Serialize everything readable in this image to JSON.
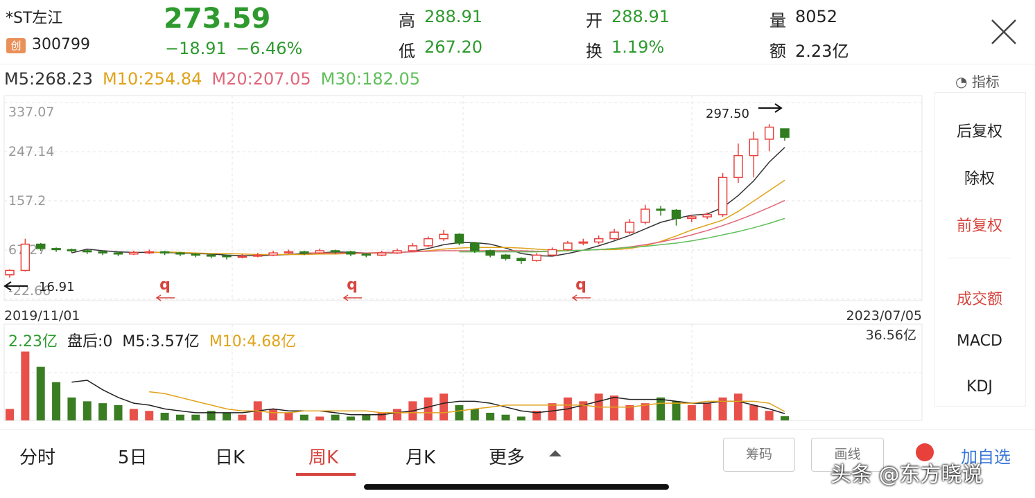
{
  "header": {
    "name": "*ST左江",
    "badge": "创",
    "code": "300799",
    "price": "273.59",
    "change": "−18.91",
    "change_pct": "−6.46%",
    "stats": [
      {
        "label": "高",
        "value": "288.91"
      },
      {
        "label": "开",
        "value": "288.91"
      },
      {
        "label": "量",
        "value": "8052"
      },
      {
        "label": "低",
        "value": "267.20"
      },
      {
        "label": "换",
        "value": "1.19%"
      },
      {
        "label": "额",
        "value": "2.23亿"
      }
    ]
  },
  "indicator_button": "指标",
  "side_menu": [
    "后复权",
    "除权",
    "前复权",
    "成交额",
    "MACD",
    "KDJ"
  ],
  "chart_data": [
    {
      "type": "candlestick",
      "up_color": "#e8413c",
      "down_color": "#2f7d1f",
      "ylim": [
        -22.66,
        337.07
      ],
      "yticks": [
        337.07,
        247.14,
        157.2,
        67.27,
        -22.66
      ],
      "x_labels": [
        "2019/11/01",
        "2023/07/05"
      ],
      "max_label": "297.50",
      "min_label": "16.91",
      "ex_rights_markers": [
        "q",
        "q",
        "q"
      ],
      "open": [
        22,
        30,
        78,
        70,
        68,
        66,
        64,
        62,
        60,
        63,
        64,
        62,
        60,
        58,
        57,
        55,
        56,
        58,
        62,
        64,
        62,
        66,
        64,
        60,
        58,
        62,
        66,
        75,
        88,
        96,
        80,
        66,
        58,
        52,
        48,
        58,
        68,
        80,
        82,
        88,
        100,
        118,
        142,
        140,
        125,
        128,
        132,
        200,
        240,
        270,
        288.91
      ],
      "high": [
        32,
        88,
        80,
        72,
        70,
        68,
        66,
        64,
        66,
        68,
        66,
        64,
        62,
        60,
        58,
        60,
        62,
        66,
        68,
        66,
        70,
        68,
        66,
        62,
        66,
        70,
        80,
        92,
        104,
        98,
        82,
        68,
        60,
        54,
        62,
        72,
        84,
        88,
        94,
        106,
        124,
        150,
        148,
        142,
        132,
        136,
        208,
        262,
        284,
        297.5,
        288.91
      ],
      "low": [
        16.91,
        28,
        66,
        64,
        62,
        60,
        58,
        56,
        58,
        60,
        58,
        56,
        54,
        52,
        50,
        52,
        54,
        56,
        60,
        58,
        60,
        60,
        56,
        54,
        56,
        60,
        64,
        72,
        84,
        76,
        62,
        54,
        48,
        42,
        46,
        56,
        66,
        76,
        78,
        86,
        96,
        114,
        130,
        112,
        118,
        124,
        128,
        190,
        200,
        248,
        267.2
      ],
      "close": [
        30,
        78,
        70,
        68,
        66,
        64,
        62,
        60,
        63,
        64,
        62,
        60,
        58,
        57,
        55,
        56,
        58,
        62,
        64,
        62,
        66,
        64,
        60,
        58,
        62,
        66,
        75,
        88,
        96,
        80,
        66,
        58,
        52,
        48,
        58,
        68,
        80,
        82,
        88,
        100,
        118,
        142,
        140,
        125,
        128,
        132,
        200,
        240,
        270,
        292,
        273.59
      ],
      "series": [
        {
          "label": "M5:268.23",
          "color": "#333333",
          "values": [
            null,
            null,
            null,
            null,
            62,
            69,
            66,
            64,
            63,
            63,
            63,
            62,
            61,
            60,
            58,
            57,
            57,
            58,
            59,
            61,
            62,
            64,
            63,
            62,
            62,
            62,
            65,
            70,
            77,
            81,
            81,
            78,
            71,
            61,
            57,
            56,
            61,
            67,
            75,
            84,
            94,
            106,
            118,
            125,
            131,
            133,
            145,
            167,
            194,
            228,
            255
          ]
        },
        {
          "label": "M10:254.84",
          "color": "#e0a31a",
          "values": [
            null,
            null,
            null,
            null,
            null,
            null,
            null,
            null,
            null,
            62,
            64,
            63,
            62,
            61,
            61,
            60,
            59,
            59,
            59,
            59,
            60,
            60,
            61,
            61,
            62,
            63,
            64,
            66,
            69,
            71,
            72,
            72,
            72,
            71,
            69,
            67,
            66,
            67,
            68,
            68,
            70,
            75,
            83,
            93,
            104,
            113,
            122,
            138,
            157,
            176,
            195
          ]
        },
        {
          "label": "M20:207.05",
          "color": "#e0677a",
          "values": [
            null,
            null,
            null,
            null,
            null,
            null,
            null,
            null,
            null,
            null,
            null,
            null,
            null,
            null,
            null,
            null,
            null,
            null,
            null,
            62,
            62,
            62,
            62,
            62,
            63,
            63,
            64,
            65,
            66,
            66,
            66,
            66,
            66,
            66,
            65,
            65,
            66,
            67,
            68,
            70,
            73,
            77,
            82,
            88,
            95,
            103,
            112,
            122,
            133,
            145,
            158
          ]
        },
        {
          "label": "M30:182.05",
          "color": "#5fbf5a",
          "values": [
            null,
            null,
            null,
            null,
            null,
            null,
            null,
            null,
            null,
            null,
            null,
            null,
            null,
            null,
            null,
            null,
            null,
            null,
            null,
            null,
            null,
            null,
            null,
            null,
            null,
            null,
            null,
            null,
            null,
            64,
            64,
            64,
            64,
            64,
            64,
            65,
            66,
            67,
            68,
            70,
            72,
            74,
            77,
            80,
            84,
            89,
            95,
            101,
            108,
            116,
            125
          ]
        }
      ]
    },
    {
      "type": "bar",
      "ylim": [
        0,
        36.56
      ],
      "yticks": [
        {
          "value": 36.56,
          "label": "36.56亿"
        }
      ],
      "legend_texts": [
        "2.23亿",
        "盘后:0"
      ],
      "values": [
        6,
        36,
        28,
        20,
        12,
        10,
        9,
        8,
        6,
        5,
        4,
        3,
        3,
        5,
        4,
        3,
        10,
        6,
        4,
        3,
        2,
        3,
        2,
        3,
        4,
        6,
        10,
        12,
        14,
        8,
        6,
        4,
        3,
        2,
        5,
        9,
        12,
        10,
        14,
        13,
        8,
        9,
        12,
        10,
        8,
        9,
        12,
        14,
        8,
        5,
        2.23
      ],
      "series": [
        {
          "label": "M5:3.57亿",
          "color": "#222222",
          "values": [
            null,
            null,
            null,
            null,
            20,
            21,
            16,
            12,
            9,
            8,
            6,
            5,
            4,
            4,
            4,
            4,
            5,
            6,
            5,
            5,
            5,
            4,
            3,
            3,
            3,
            4,
            5,
            7,
            9,
            10,
            10,
            9,
            7,
            5,
            4,
            5,
            6,
            8,
            10,
            12,
            11,
            11,
            11,
            10,
            9,
            9,
            10,
            10,
            8,
            6,
            3.57
          ]
        },
        {
          "label": "M10:4.68亿",
          "color": "#e0a31a",
          "values": [
            null,
            null,
            null,
            null,
            null,
            null,
            null,
            null,
            null,
            15,
            14,
            12,
            10,
            8,
            6,
            5,
            5,
            4,
            4,
            5,
            5,
            5,
            5,
            5,
            4,
            4,
            4,
            4,
            4,
            5,
            6,
            7,
            8,
            8,
            8,
            8,
            8,
            8,
            7,
            7,
            7,
            8,
            9,
            9,
            9,
            10,
            10,
            10,
            10,
            9,
            4.68
          ]
        }
      ]
    }
  ],
  "tabs": [
    "分时",
    "5日",
    "日K",
    "周K",
    "月K",
    "更多"
  ],
  "buttons": [
    "筹码",
    "画线",
    "加自选"
  ],
  "watermark": "头条 @东方晓说"
}
